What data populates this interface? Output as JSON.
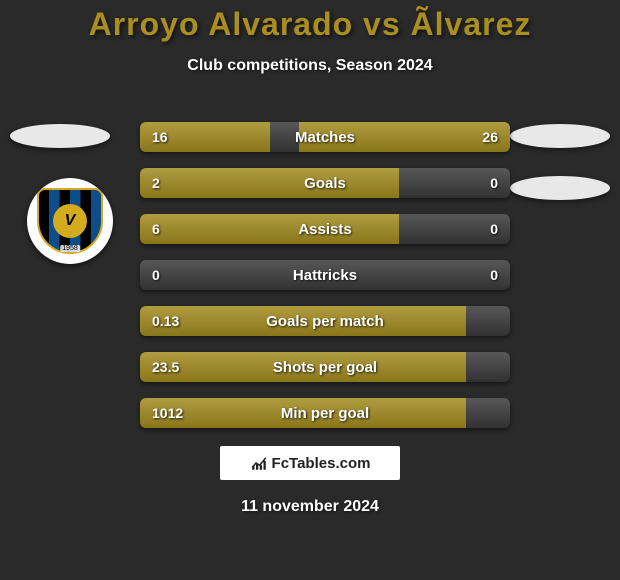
{
  "title_color": "#aa8e20",
  "title": "Arroyo Alvarado vs Ãlvarez",
  "subtitle": "Club competitions, Season 2024",
  "bar_color": "#a28a1f",
  "bg_color": "#2a2a2a",
  "track_color": "#3a3a3a",
  "bars": [
    {
      "label": "Matches",
      "left": "16",
      "right": "26",
      "left_pct": 35,
      "right_pct": 57
    },
    {
      "label": "Goals",
      "left": "2",
      "right": "0",
      "left_pct": 70,
      "right_pct": 0
    },
    {
      "label": "Assists",
      "left": "6",
      "right": "0",
      "left_pct": 70,
      "right_pct": 0
    },
    {
      "label": "Hattricks",
      "left": "0",
      "right": "0",
      "left_pct": 0,
      "right_pct": 0
    },
    {
      "label": "Goals per match",
      "left": "0.13",
      "right": "",
      "left_pct": 88,
      "right_pct": 0
    },
    {
      "label": "Shots per goal",
      "left": "23.5",
      "right": "",
      "left_pct": 88,
      "right_pct": 0
    },
    {
      "label": "Min per goal",
      "left": "1012",
      "right": "",
      "left_pct": 88,
      "right_pct": 0
    }
  ],
  "footer_brand": "FcTables.com",
  "date": "11 november 2024",
  "crest_letter": "V",
  "crest_year": "1958"
}
